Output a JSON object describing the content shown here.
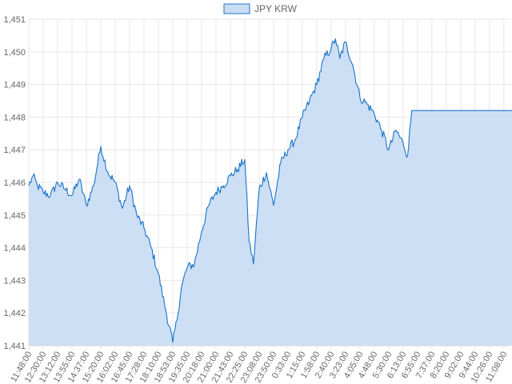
{
  "chart_data": {
    "type": "area",
    "title": "",
    "xlabel": "",
    "ylabel": "",
    "legend": {
      "position": "top-center",
      "entries": [
        "JPY KRW"
      ]
    },
    "colors": {
      "line": "#1a73c9",
      "fill": "#c9ddf3",
      "grid": "#e6e6e6"
    },
    "grid": true,
    "ylim": [
      1441,
      1451
    ],
    "y_ticks": [
      "1,441",
      "1,442",
      "1,443",
      "1,444",
      "1,445",
      "1,446",
      "1,447",
      "1,448",
      "1,449",
      "1,450",
      "1,451"
    ],
    "x_ticks": [
      "11:48:00",
      "12:30:00",
      "13:12:00",
      "13:55:00",
      "14:37:00",
      "15:20:00",
      "16:02:00",
      "16:45:00",
      "17:28:00",
      "18:10:00",
      "18:53:00",
      "19:35:00",
      "20:18:00",
      "21:00:00",
      "21:43:00",
      "22:25:00",
      "23:08:00",
      "23:50:00",
      "0:33:00",
      "1:15:00",
      "1:58:00",
      "2:40:00",
      "3:23:00",
      "4:05:00",
      "4:48:00",
      "5:30:00",
      "6:13:00",
      "6:55:00",
      "7:37:00",
      "8:20:00",
      "9:02:00",
      "9:44:00",
      "10:26:00",
      "11:08:00"
    ],
    "series": [
      {
        "name": "JPY KRW",
        "x_index": [
          0,
          0.3,
          0.6,
          1,
          1.5,
          2,
          2.5,
          3,
          3.5,
          4,
          4.5,
          5,
          5.5,
          6,
          6.5,
          7,
          7.5,
          8,
          8.5,
          9,
          9.5,
          10,
          10.3,
          10.6,
          11,
          11.5,
          12,
          12.5,
          13,
          13.5,
          14,
          14.5,
          15,
          15.3,
          15.6,
          16,
          16.5,
          17,
          17.5,
          18,
          18.5,
          19,
          19.5,
          20,
          20.5,
          21,
          21.3,
          21.6,
          22,
          22.5,
          23,
          23.5,
          24,
          24.5,
          25,
          25.5,
          26,
          26.3,
          26.6,
          27,
          28,
          29,
          30,
          31,
          32,
          33,
          33.6
        ],
        "values": [
          1445.9,
          1446.2,
          1445.9,
          1445.7,
          1445.6,
          1446.0,
          1445.8,
          1445.6,
          1446.1,
          1445.3,
          1445.9,
          1447.1,
          1446.3,
          1446.0,
          1445.2,
          1445.9,
          1445.0,
          1444.6,
          1444.0,
          1443.2,
          1442.1,
          1441.1,
          1441.8,
          1442.8,
          1443.4,
          1443.5,
          1444.5,
          1445.3,
          1445.7,
          1445.9,
          1446.2,
          1446.4,
          1446.7,
          1444.2,
          1443.5,
          1445.8,
          1446.3,
          1445.3,
          1446.6,
          1447.0,
          1447.3,
          1448.0,
          1448.5,
          1449.0,
          1449.8,
          1450.1,
          1450.4,
          1449.8,
          1450.3,
          1449.6,
          1448.6,
          1448.4,
          1448.1,
          1447.6,
          1447.0,
          1447.6,
          1447.2,
          1446.8,
          1448.2,
          1448.2,
          1448.2,
          1448.2,
          1448.2,
          1448.2,
          1448.2,
          1448.2,
          1448.2
        ]
      }
    ]
  }
}
